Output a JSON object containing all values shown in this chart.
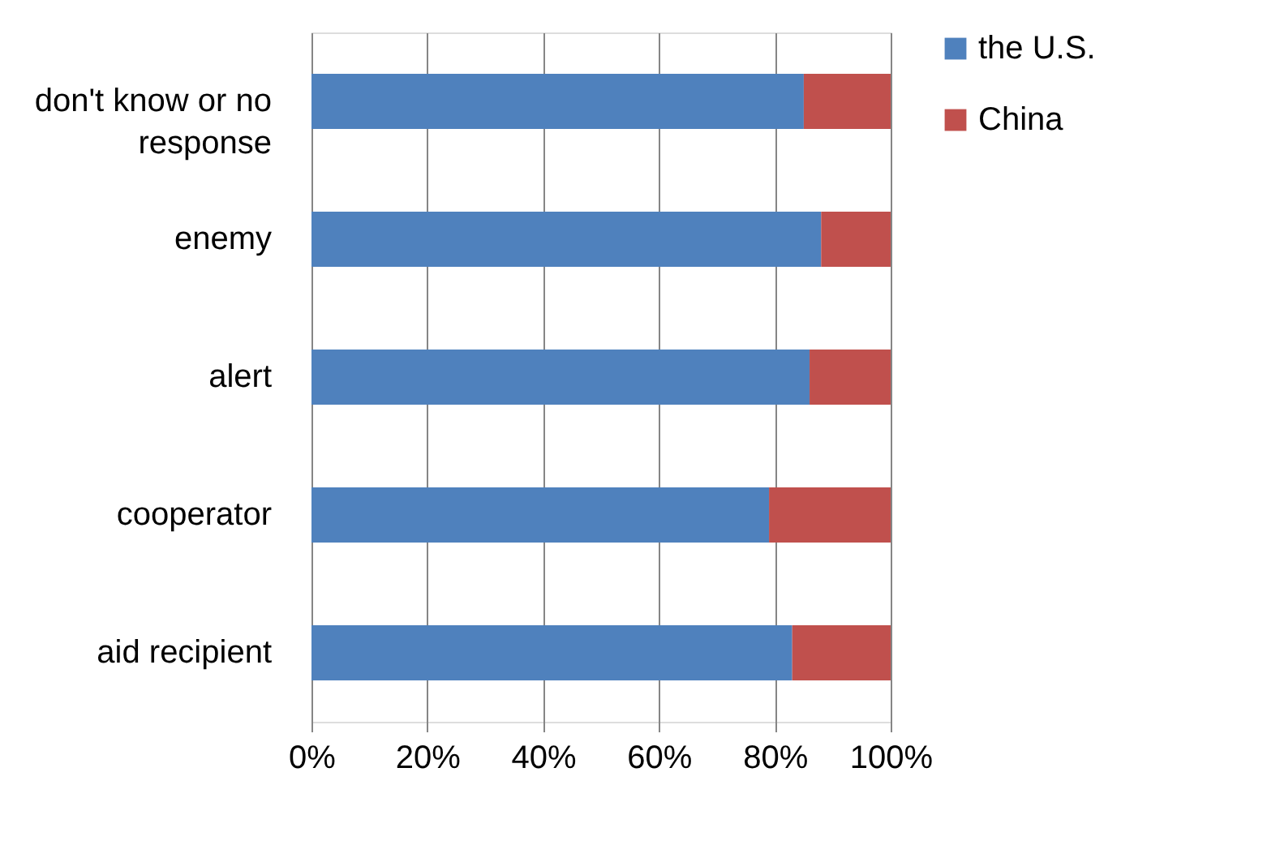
{
  "chart_data": {
    "type": "bar",
    "orientation": "horizontal",
    "stacked": true,
    "categories": [
      "don't know or no response",
      "enemy",
      "alert",
      "cooperator",
      "aid recipient"
    ],
    "series": [
      {
        "name": "the U.S.",
        "color": "#4f81bd",
        "values": [
          85,
          88,
          86,
          79,
          83
        ]
      },
      {
        "name": "China",
        "color": "#c0504d",
        "values": [
          15,
          12,
          14,
          21,
          17
        ]
      }
    ],
    "xlim": [
      0,
      100
    ],
    "xticks": [
      {
        "value": 0,
        "label": "0%"
      },
      {
        "value": 20,
        "label": "20%"
      },
      {
        "value": 40,
        "label": "40%"
      },
      {
        "value": 60,
        "label": "60%"
      },
      {
        "value": 80,
        "label": "80%"
      },
      {
        "value": 100,
        "label": "100%"
      }
    ],
    "grid": "x",
    "legend": "right"
  }
}
